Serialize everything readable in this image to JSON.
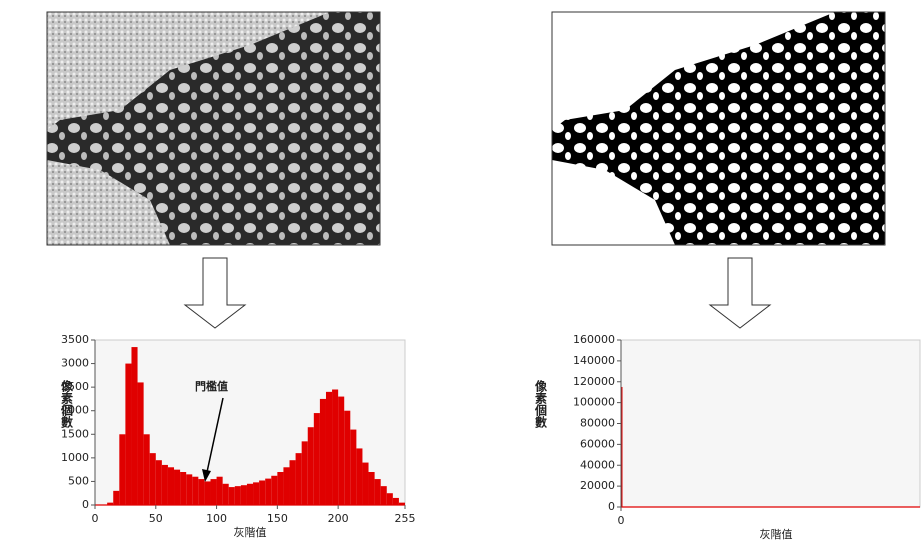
{
  "chart_data": [
    {
      "type": "histogram",
      "x_label": "灰階值",
      "y_label": "像素個數",
      "annotation": "門檻值",
      "color": "#e00000",
      "bins": [
        0,
        5,
        10,
        15,
        20,
        25,
        30,
        35,
        40,
        45,
        50,
        55,
        60,
        65,
        70,
        75,
        80,
        85,
        90,
        95,
        100,
        105,
        110,
        115,
        120,
        125,
        130,
        135,
        140,
        145,
        150,
        155,
        160,
        165,
        170,
        175,
        180,
        185,
        190,
        195,
        200,
        205,
        210,
        215,
        220,
        225,
        230,
        235,
        240,
        245,
        250,
        255
      ],
      "counts": [
        0,
        0,
        50,
        300,
        1500,
        3000,
        3350,
        2600,
        1500,
        1100,
        950,
        850,
        800,
        750,
        700,
        650,
        600,
        550,
        500,
        550,
        600,
        450,
        380,
        400,
        420,
        450,
        480,
        520,
        560,
        620,
        700,
        800,
        950,
        1100,
        1350,
        1650,
        1950,
        2250,
        2400,
        2450,
        2300,
        2000,
        1600,
        1200,
        900,
        700,
        550,
        400,
        250,
        150,
        50
      ],
      "xlim": [
        0,
        255
      ],
      "xticks": [
        0,
        50,
        100,
        150,
        200,
        255
      ],
      "ylim": [
        0,
        3500
      ],
      "yticks": [
        0,
        500,
        1000,
        1500,
        2000,
        2500,
        3000,
        3500
      ]
    },
    {
      "type": "histogram",
      "x_label": "灰階值",
      "y_label": "像素個數",
      "color": "#e00000",
      "bins": [
        0,
        1
      ],
      "counts": [
        115000
      ],
      "xlim": [
        0,
        255
      ],
      "xticks": [
        0
      ],
      "ylim": [
        0,
        160000
      ],
      "yticks": [
        0,
        20000,
        40000,
        60000,
        80000,
        100000,
        120000,
        140000,
        160000
      ]
    }
  ]
}
